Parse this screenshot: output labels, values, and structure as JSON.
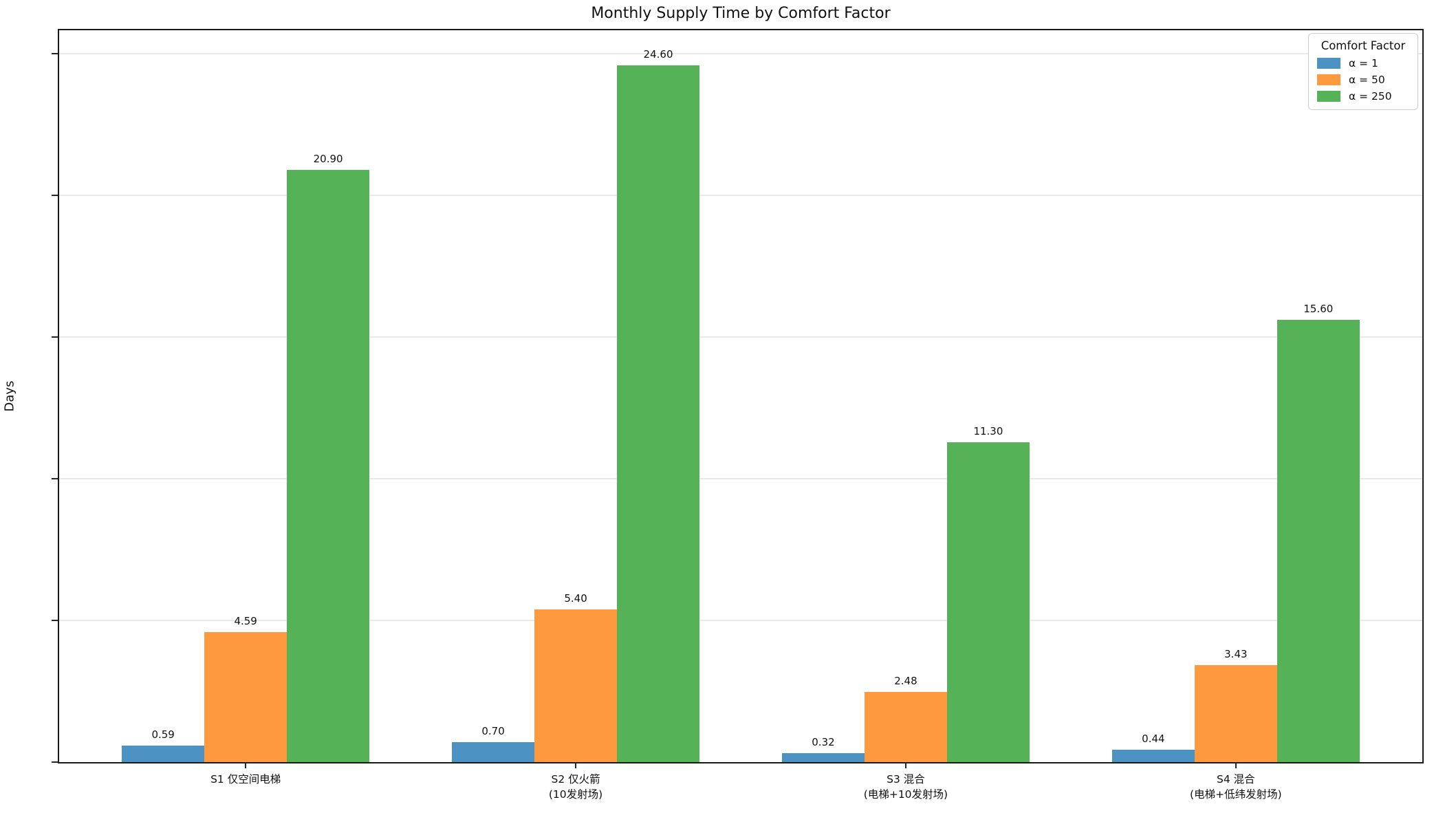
{
  "title": "Monthly Supply Time by Comfort Factor",
  "chart_data": {
    "type": "bar",
    "title": "Monthly Supply Time by Comfort Factor",
    "xlabel": "",
    "ylabel": "Days",
    "categories": [
      "S1 仅空间电梯",
      "S2 仅火箭\n(10发射场)",
      "S3 混合\n(电梯+10发射场)",
      "S4 混合\n(电梯+低纬发射场)"
    ],
    "series": [
      {
        "name": "α = 1",
        "color": "#4C92C3",
        "values": [
          0.59,
          0.7,
          0.32,
          0.44
        ]
      },
      {
        "name": "α = 50",
        "color": "#FF993E",
        "values": [
          4.59,
          5.4,
          2.48,
          3.43
        ]
      },
      {
        "name": "α = 250",
        "color": "#55B256",
        "values": [
          20.9,
          24.6,
          11.3,
          15.6
        ]
      }
    ],
    "value_label_format": "2-decimals",
    "y_ticks": [
      0,
      5,
      10,
      15,
      20,
      25
    ],
    "ylim": [
      0,
      25.83
    ],
    "grid": "horizontal",
    "legend": {
      "title": "Comfort Factor",
      "position": "upper right"
    }
  },
  "colors": {
    "bar_blue": "#4C92C3",
    "bar_orange": "#FF993E",
    "bar_green": "#55B256",
    "grid": "#e9e9e9",
    "spine": "#1a1a1a"
  }
}
